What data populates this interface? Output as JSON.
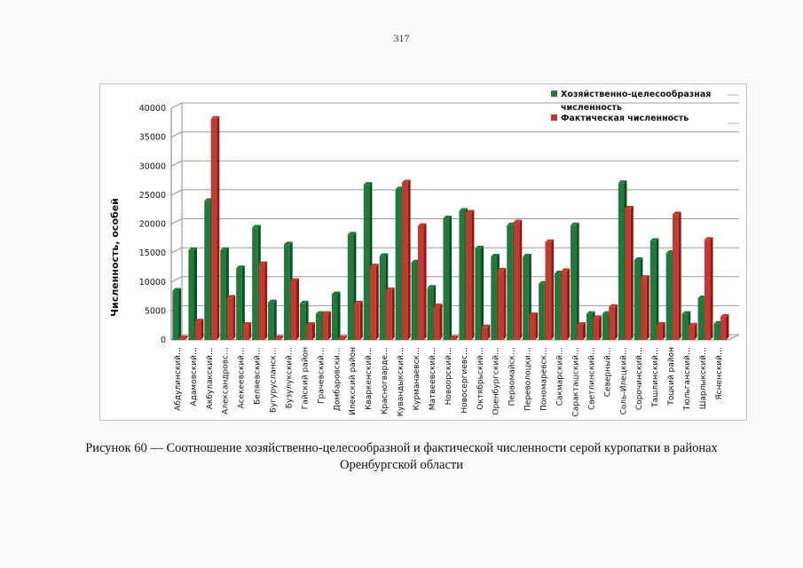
{
  "page_number": "317",
  "caption": {
    "line1": "Рисунок 60 — Соотношение хозяйственно-целесообразной и фактической численности серой куропатки в районах",
    "line2": "Оренбургской области"
  },
  "colors": {
    "series_1": "#1f7a3c",
    "series_2": "#c8382f"
  },
  "chart_data": {
    "type": "bar",
    "ylabel": "Численность, особей",
    "ylim": [
      0,
      40000
    ],
    "yticks": [
      0,
      5000,
      10000,
      15000,
      20000,
      25000,
      30000,
      35000,
      40000
    ],
    "grid": true,
    "legend_position": "top-right",
    "categories": [
      "Абдулинский…",
      "Адамовский…",
      "Акбулакский…",
      "Александровс…",
      "Асекеевский…",
      "Беляевский…",
      "Бугурусланск…",
      "Бузулукский…",
      "Гайский район",
      "Грачевский…",
      "Домбаровски…",
      "Илекский район",
      "Кваркенский…",
      "Красногварде…",
      "Кувандыкский…",
      "Курманаевск…",
      "Матвеевский…",
      "Новоорский…",
      "Новосергиевс…",
      "Октябрьский…",
      "Оренбургский…",
      "Первомайск…",
      "Переволоцки…",
      "Пономаревск…",
      "Сакмарский…",
      "Саракташский…",
      "Светлинский…",
      "Северный…",
      "Соль-Илецкий…",
      "Сорочинский…",
      "Ташлинский…",
      "Тоцкий район",
      "Тюльганский…",
      "Шарлыкский…",
      "Ясненский…"
    ],
    "series": [
      {
        "name": "Хозяйственно-целесообразная численность",
        "values": [
          8500,
          15500,
          24000,
          15500,
          12400,
          19400,
          6500,
          16500,
          6300,
          4500,
          7900,
          18200,
          26800,
          14500,
          26000,
          13400,
          9000,
          21000,
          22300,
          15800,
          14400,
          19800,
          14400,
          9700,
          11500,
          19800,
          4500,
          4500,
          27100,
          13800,
          17100,
          15000,
          4500,
          7200,
          2800
        ]
      },
      {
        "name": "Фактическая численность",
        "values": [
          300,
          3200,
          38200,
          7300,
          2600,
          13100,
          300,
          10200,
          2600,
          4500,
          300,
          6300,
          12700,
          8600,
          27200,
          19700,
          5800,
          300,
          22000,
          2200,
          12000,
          20300,
          4300,
          16900,
          11900,
          2600,
          3800,
          5700,
          22700,
          10700,
          2600,
          21700,
          2500,
          17300,
          4000
        ]
      }
    ]
  }
}
